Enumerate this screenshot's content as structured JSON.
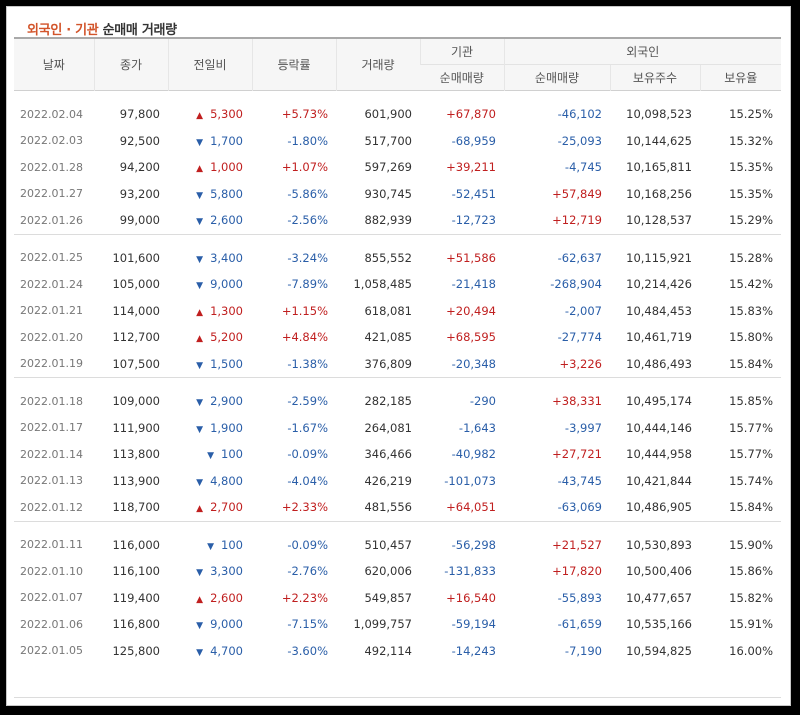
{
  "title": {
    "part1": "외국인 · 기관",
    "part2": " 순매매 거래량"
  },
  "headers": {
    "date": "날짜",
    "close": "종가",
    "change": "전일비",
    "rate": "등락률",
    "volume": "거래량",
    "inst_group": "기관",
    "foreign_group": "외국인",
    "inst_net": "순매매량",
    "foreign_net": "순매매량",
    "foreign_holdings": "보유주수",
    "foreign_ratio": "보유율"
  },
  "colors": {
    "up": "#c01f1f",
    "down": "#2a5ea8",
    "title_accent": "#d2542a"
  },
  "groups": [
    [
      {
        "date": "2022.02.04",
        "close": "97,800",
        "dir": "up",
        "change": "5,300",
        "rate": "+5.73%",
        "volume": "601,900",
        "inst": "+67,870",
        "foreign": "-46,102",
        "holdings": "10,098,523",
        "ratio": "15.25%"
      },
      {
        "date": "2022.02.03",
        "close": "92,500",
        "dir": "down",
        "change": "1,700",
        "rate": "-1.80%",
        "volume": "517,700",
        "inst": "-68,959",
        "foreign": "-25,093",
        "holdings": "10,144,625",
        "ratio": "15.32%"
      },
      {
        "date": "2022.01.28",
        "close": "94,200",
        "dir": "up",
        "change": "1,000",
        "rate": "+1.07%",
        "volume": "597,269",
        "inst": "+39,211",
        "foreign": "-4,745",
        "holdings": "10,165,811",
        "ratio": "15.35%"
      },
      {
        "date": "2022.01.27",
        "close": "93,200",
        "dir": "down",
        "change": "5,800",
        "rate": "-5.86%",
        "volume": "930,745",
        "inst": "-52,451",
        "foreign": "+57,849",
        "holdings": "10,168,256",
        "ratio": "15.35%"
      },
      {
        "date": "2022.01.26",
        "close": "99,000",
        "dir": "down",
        "change": "2,600",
        "rate": "-2.56%",
        "volume": "882,939",
        "inst": "-12,723",
        "foreign": "+12,719",
        "holdings": "10,128,537",
        "ratio": "15.29%"
      }
    ],
    [
      {
        "date": "2022.01.25",
        "close": "101,600",
        "dir": "down",
        "change": "3,400",
        "rate": "-3.24%",
        "volume": "855,552",
        "inst": "+51,586",
        "foreign": "-62,637",
        "holdings": "10,115,921",
        "ratio": "15.28%"
      },
      {
        "date": "2022.01.24",
        "close": "105,000",
        "dir": "down",
        "change": "9,000",
        "rate": "-7.89%",
        "volume": "1,058,485",
        "inst": "-21,418",
        "foreign": "-268,904",
        "holdings": "10,214,426",
        "ratio": "15.42%"
      },
      {
        "date": "2022.01.21",
        "close": "114,000",
        "dir": "up",
        "change": "1,300",
        "rate": "+1.15%",
        "volume": "618,081",
        "inst": "+20,494",
        "foreign": "-2,007",
        "holdings": "10,484,453",
        "ratio": "15.83%"
      },
      {
        "date": "2022.01.20",
        "close": "112,700",
        "dir": "up",
        "change": "5,200",
        "rate": "+4.84%",
        "volume": "421,085",
        "inst": "+68,595",
        "foreign": "-27,774",
        "holdings": "10,461,719",
        "ratio": "15.80%"
      },
      {
        "date": "2022.01.19",
        "close": "107,500",
        "dir": "down",
        "change": "1,500",
        "rate": "-1.38%",
        "volume": "376,809",
        "inst": "-20,348",
        "foreign": "+3,226",
        "holdings": "10,486,493",
        "ratio": "15.84%"
      }
    ],
    [
      {
        "date": "2022.01.18",
        "close": "109,000",
        "dir": "down",
        "change": "2,900",
        "rate": "-2.59%",
        "volume": "282,185",
        "inst": "-290",
        "foreign": "+38,331",
        "holdings": "10,495,174",
        "ratio": "15.85%"
      },
      {
        "date": "2022.01.17",
        "close": "111,900",
        "dir": "down",
        "change": "1,900",
        "rate": "-1.67%",
        "volume": "264,081",
        "inst": "-1,643",
        "foreign": "-3,997",
        "holdings": "10,444,146",
        "ratio": "15.77%"
      },
      {
        "date": "2022.01.14",
        "close": "113,800",
        "dir": "down",
        "change": "100",
        "rate": "-0.09%",
        "volume": "346,466",
        "inst": "-40,982",
        "foreign": "+27,721",
        "holdings": "10,444,958",
        "ratio": "15.77%"
      },
      {
        "date": "2022.01.13",
        "close": "113,900",
        "dir": "down",
        "change": "4,800",
        "rate": "-4.04%",
        "volume": "426,219",
        "inst": "-101,073",
        "foreign": "-43,745",
        "holdings": "10,421,844",
        "ratio": "15.74%"
      },
      {
        "date": "2022.01.12",
        "close": "118,700",
        "dir": "up",
        "change": "2,700",
        "rate": "+2.33%",
        "volume": "481,556",
        "inst": "+64,051",
        "foreign": "-63,069",
        "holdings": "10,486,905",
        "ratio": "15.84%"
      }
    ],
    [
      {
        "date": "2022.01.11",
        "close": "116,000",
        "dir": "down",
        "change": "100",
        "rate": "-0.09%",
        "volume": "510,457",
        "inst": "-56,298",
        "foreign": "+21,527",
        "holdings": "10,530,893",
        "ratio": "15.90%"
      },
      {
        "date": "2022.01.10",
        "close": "116,100",
        "dir": "down",
        "change": "3,300",
        "rate": "-2.76%",
        "volume": "620,006",
        "inst": "-131,833",
        "foreign": "+17,820",
        "holdings": "10,500,406",
        "ratio": "15.86%"
      },
      {
        "date": "2022.01.07",
        "close": "119,400",
        "dir": "up",
        "change": "2,600",
        "rate": "+2.23%",
        "volume": "549,857",
        "inst": "+16,540",
        "foreign": "-55,893",
        "holdings": "10,477,657",
        "ratio": "15.82%"
      },
      {
        "date": "2022.01.06",
        "close": "116,800",
        "dir": "down",
        "change": "9,000",
        "rate": "-7.15%",
        "volume": "1,099,757",
        "inst": "-59,194",
        "foreign": "-61,659",
        "holdings": "10,535,166",
        "ratio": "15.91%"
      },
      {
        "date": "2022.01.05",
        "close": "125,800",
        "dir": "down",
        "change": "4,700",
        "rate": "-3.60%",
        "volume": "492,114",
        "inst": "-14,243",
        "foreign": "-7,190",
        "holdings": "10,594,825",
        "ratio": "16.00%"
      }
    ]
  ]
}
